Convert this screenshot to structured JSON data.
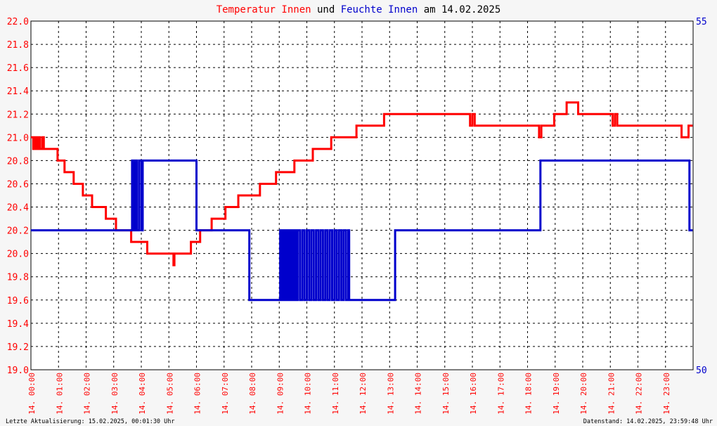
{
  "title": {
    "part1": "Temperatur Innen",
    "part2": " und ",
    "part3": "Feuchte Innen",
    "part4": " am 14.02.2025"
  },
  "footer": {
    "left": "Letzte Aktualisierung: 15.02.2025, 00:01:30 Uhr",
    "right": "Datenstand: 14.02.2025, 23:59:48 Uhr"
  },
  "colors": {
    "temperature": "#ff0000",
    "humidity": "#0000cc",
    "grid": "#000000",
    "background": "#f6f6f6"
  },
  "chart_data": {
    "type": "line",
    "title": "Temperatur Innen und Feuchte Innen am 14.02.2025",
    "x_ticks": [
      "14. 00:00",
      "14. 01:00",
      "14. 02:00",
      "14. 03:00",
      "14. 04:00",
      "14. 05:00",
      "14. 06:00",
      "14. 07:00",
      "14. 08:00",
      "14. 09:00",
      "14. 10:00",
      "14. 11:00",
      "14. 12:00",
      "14. 13:00",
      "14. 14:00",
      "14. 15:00",
      "14. 16:00",
      "14. 17:00",
      "14. 18:00",
      "14. 19:00",
      "14. 20:00",
      "14. 21:00",
      "14. 22:00",
      "14. 23:00"
    ],
    "xlim": [
      "00:00",
      "24:00"
    ],
    "y_left": {
      "ylim": [
        19.0,
        22.0
      ],
      "ticks": [
        "19.0",
        "19.2",
        "19.4",
        "19.6",
        "19.8",
        "20.0",
        "20.2",
        "20.4",
        "20.6",
        "20.8",
        "21.0",
        "21.2",
        "21.4",
        "21.6",
        "21.8",
        "22.0"
      ]
    },
    "y_right": {
      "ylim": [
        50,
        55
      ],
      "ticks": [
        "50",
        "55"
      ]
    },
    "grid": true,
    "series": [
      {
        "name": "Temperatur Innen",
        "axis": "left",
        "color": "#ff0000",
        "points": [
          [
            "00:00",
            21.0
          ],
          [
            "00:05",
            20.9
          ],
          [
            "00:08",
            21.0
          ],
          [
            "00:12",
            20.9
          ],
          [
            "00:16",
            21.0
          ],
          [
            "00:20",
            20.9
          ],
          [
            "00:25",
            21.0
          ],
          [
            "00:28",
            20.9
          ],
          [
            "00:55",
            20.9
          ],
          [
            "00:58",
            20.8
          ],
          [
            "01:10",
            20.8
          ],
          [
            "01:13",
            20.7
          ],
          [
            "01:30",
            20.7
          ],
          [
            "01:33",
            20.6
          ],
          [
            "01:50",
            20.6
          ],
          [
            "01:53",
            20.5
          ],
          [
            "02:10",
            20.5
          ],
          [
            "02:13",
            20.4
          ],
          [
            "02:40",
            20.4
          ],
          [
            "02:43",
            20.3
          ],
          [
            "03:00",
            20.3
          ],
          [
            "03:05",
            20.2
          ],
          [
            "03:35",
            20.2
          ],
          [
            "03:38",
            20.1
          ],
          [
            "04:10",
            20.1
          ],
          [
            "04:13",
            20.0
          ],
          [
            "05:00",
            20.0
          ],
          [
            "05:10",
            19.9
          ],
          [
            "05:12",
            20.0
          ],
          [
            "05:45",
            20.0
          ],
          [
            "05:48",
            20.1
          ],
          [
            "06:05",
            20.1
          ],
          [
            "06:08",
            20.2
          ],
          [
            "06:30",
            20.2
          ],
          [
            "06:33",
            20.3
          ],
          [
            "07:00",
            20.3
          ],
          [
            "07:03",
            20.4
          ],
          [
            "07:28",
            20.4
          ],
          [
            "07:31",
            20.5
          ],
          [
            "08:15",
            20.5
          ],
          [
            "08:18",
            20.6
          ],
          [
            "08:50",
            20.6
          ],
          [
            "08:53",
            20.7
          ],
          [
            "09:30",
            20.7
          ],
          [
            "09:33",
            20.8
          ],
          [
            "10:10",
            20.8
          ],
          [
            "10:13",
            20.9
          ],
          [
            "10:50",
            20.9
          ],
          [
            "10:53",
            21.0
          ],
          [
            "11:45",
            21.0
          ],
          [
            "11:48",
            21.1
          ],
          [
            "12:45",
            21.1
          ],
          [
            "12:48",
            21.2
          ],
          [
            "15:50",
            21.2
          ],
          [
            "15:55",
            21.1
          ],
          [
            "16:00",
            21.2
          ],
          [
            "16:05",
            21.1
          ],
          [
            "18:20",
            21.1
          ],
          [
            "18:25",
            21.0
          ],
          [
            "18:30",
            21.1
          ],
          [
            "18:55",
            21.1
          ],
          [
            "18:58",
            21.2
          ],
          [
            "19:20",
            21.2
          ],
          [
            "19:25",
            21.3
          ],
          [
            "19:50",
            21.2
          ],
          [
            "21:00",
            21.2
          ],
          [
            "21:05",
            21.1
          ],
          [
            "21:10",
            21.2
          ],
          [
            "21:15",
            21.1
          ],
          [
            "23:30",
            21.1
          ],
          [
            "23:35",
            21.0
          ],
          [
            "23:45",
            21.0
          ],
          [
            "23:50",
            21.1
          ],
          [
            "23:59",
            21.1
          ]
        ]
      },
      {
        "name": "Feuchte Innen",
        "axis": "right",
        "color": "#0000cc",
        "points": [
          [
            "00:00",
            52.0
          ],
          [
            "03:38",
            52.0
          ],
          [
            "03:40",
            53.0
          ],
          [
            "03:43",
            52.0
          ],
          [
            "03:46",
            53.0
          ],
          [
            "03:50",
            52.0
          ],
          [
            "03:55",
            53.0
          ],
          [
            "04:00",
            52.0
          ],
          [
            "04:03",
            53.0
          ],
          [
            "05:58",
            53.0
          ],
          [
            "06:00",
            52.0
          ],
          [
            "07:50",
            52.0
          ],
          [
            "07:55",
            51.0
          ],
          [
            "09:00",
            51.0
          ],
          [
            "09:02",
            52.0
          ],
          [
            "09:04",
            51.0
          ],
          [
            "09:06",
            52.0
          ],
          [
            "09:08",
            51.0
          ],
          [
            "09:10",
            52.0
          ],
          [
            "09:12",
            51.0
          ],
          [
            "09:14",
            52.0
          ],
          [
            "09:16",
            51.0
          ],
          [
            "09:18",
            52.0
          ],
          [
            "09:20",
            51.0
          ],
          [
            "09:22",
            52.0
          ],
          [
            "09:24",
            51.0
          ],
          [
            "09:26",
            52.0
          ],
          [
            "09:28",
            51.0
          ],
          [
            "09:30",
            52.0
          ],
          [
            "09:32",
            51.0
          ],
          [
            "09:34",
            52.0
          ],
          [
            "09:36",
            51.0
          ],
          [
            "09:40",
            52.0
          ],
          [
            "09:45",
            51.0
          ],
          [
            "09:50",
            52.0
          ],
          [
            "09:55",
            51.0
          ],
          [
            "10:00",
            52.0
          ],
          [
            "10:05",
            51.0
          ],
          [
            "10:10",
            52.0
          ],
          [
            "10:15",
            51.0
          ],
          [
            "10:20",
            52.0
          ],
          [
            "10:25",
            51.0
          ],
          [
            "10:30",
            52.0
          ],
          [
            "10:35",
            51.0
          ],
          [
            "10:40",
            52.0
          ],
          [
            "10:45",
            51.0
          ],
          [
            "10:50",
            52.0
          ],
          [
            "10:55",
            51.0
          ],
          [
            "11:00",
            52.0
          ],
          [
            "11:05",
            51.0
          ],
          [
            "11:10",
            52.0
          ],
          [
            "11:15",
            51.0
          ],
          [
            "11:20",
            52.0
          ],
          [
            "11:25",
            51.0
          ],
          [
            "11:30",
            52.0
          ],
          [
            "11:32",
            51.0
          ],
          [
            "13:10",
            51.0
          ],
          [
            "13:12",
            52.0
          ],
          [
            "18:25",
            52.0
          ],
          [
            "18:28",
            53.0
          ],
          [
            "23:50",
            53.0
          ],
          [
            "23:52",
            52.0
          ],
          [
            "23:59",
            52.0
          ]
        ]
      }
    ]
  }
}
